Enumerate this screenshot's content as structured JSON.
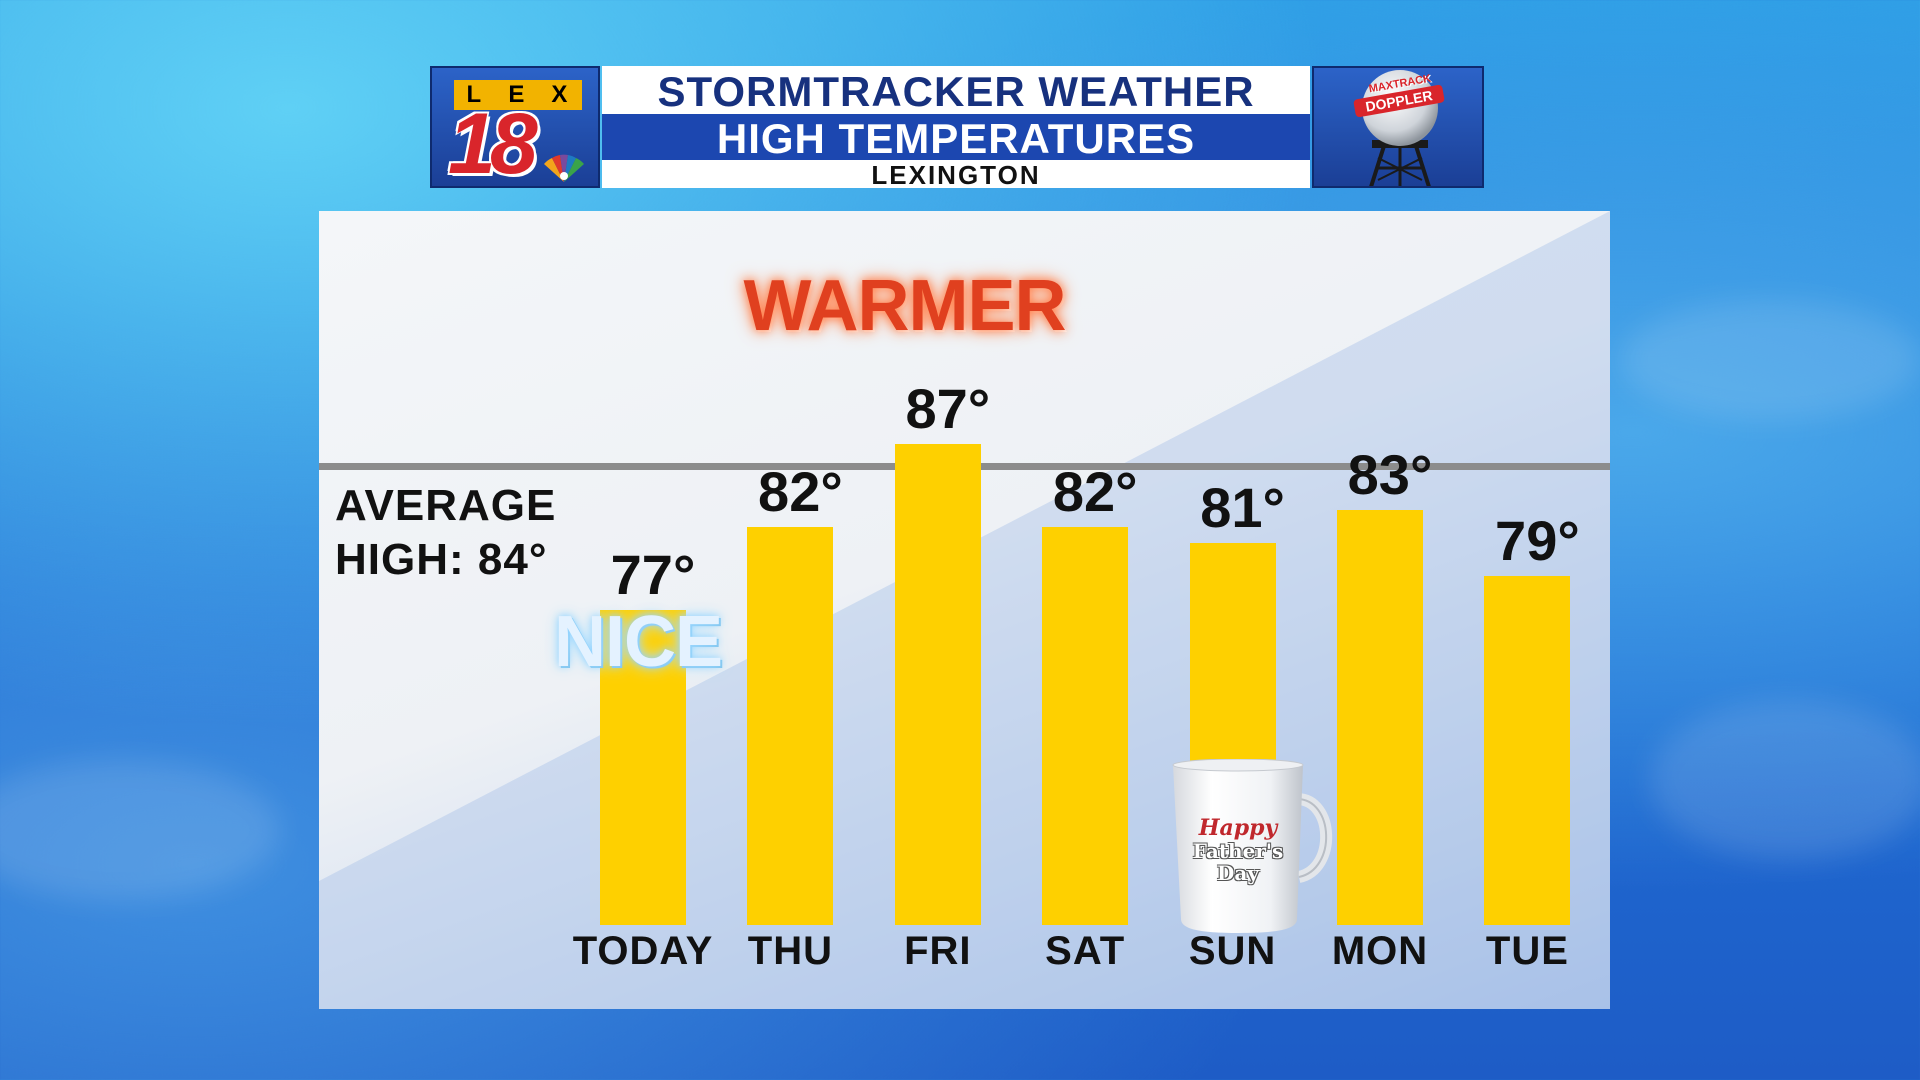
{
  "header": {
    "logo_letters": [
      "L",
      "E",
      "X"
    ],
    "logo_number": "18",
    "title_line1": "STORMTRACKER WEATHER",
    "title_line2": "HIGH TEMPERATURES",
    "location": "LEXINGTON",
    "doppler_badge_top": "MAXTRACK",
    "doppler_badge_bottom": "DOPPLER"
  },
  "annotations": {
    "warmer": "WARMER",
    "nice": "NICE",
    "average_line1": "AVERAGE",
    "average_line2": "HIGH: 84°",
    "mug_line1": "Happy",
    "mug_line2": "Father's",
    "mug_line3": "Day"
  },
  "colors": {
    "bar": "#fed000",
    "banner_blue": "#1c47b0",
    "title_navy": "#17317e",
    "warmer_red": "#e0401f"
  },
  "chart_data": {
    "type": "bar",
    "title": "HIGH TEMPERATURES",
    "categories": [
      "TODAY",
      "THU",
      "FRI",
      "SAT",
      "SUN",
      "MON",
      "TUE"
    ],
    "values": [
      77,
      82,
      87,
      82,
      81,
      83,
      79
    ],
    "value_labels": [
      "77°",
      "82°",
      "87°",
      "82°",
      "81°",
      "83°",
      "79°"
    ],
    "reference_line": {
      "label": "AVERAGE HIGH: 84°",
      "value": 84
    },
    "ylim": [
      58,
      90
    ],
    "grid": false
  }
}
